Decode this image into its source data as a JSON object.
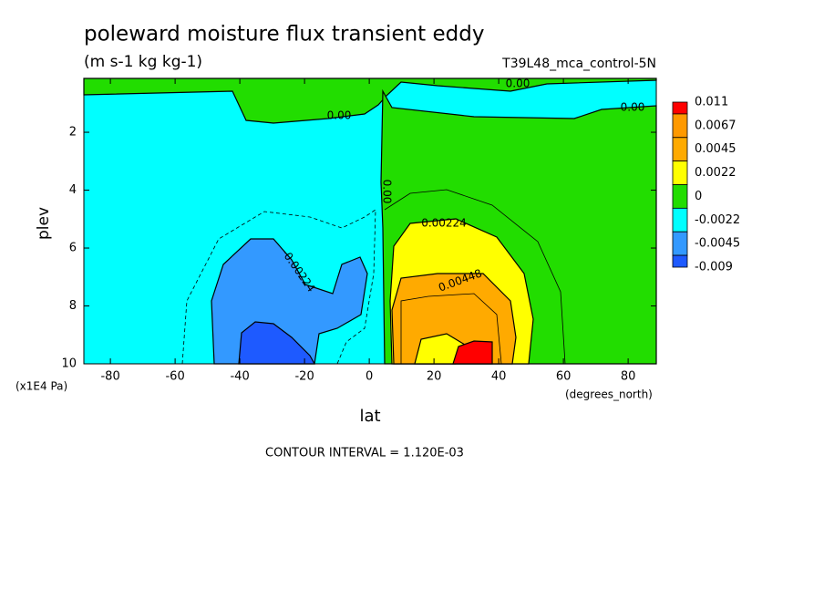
{
  "chart_data": {
    "type": "contour",
    "title": "poleward moisture flux transient eddy",
    "subtitle": "(m s-1 kg kg-1)",
    "run_label": "T39L48_mca_control-5N",
    "x_label": "lat",
    "x_unit": "(degrees_north)",
    "y_label": "plev",
    "y_unit": "(x1E4 Pa)",
    "footer": "CONTOUR INTERVAL = 1.120E-03",
    "xlim": [
      -88.2,
      88.7
    ],
    "xticks": [
      -80,
      -60,
      -40,
      -20,
      0,
      20,
      40,
      60,
      80
    ],
    "ylim": [
      0.14,
      10
    ],
    "yticks": [
      2,
      4,
      6,
      8,
      10
    ],
    "y_inverted": true,
    "levels": [
      0.011,
      0.0067,
      0.0045,
      0.0022,
      0,
      -0.0022,
      -0.0045,
      -0.009
    ],
    "colors": [
      "#ff0000",
      "#ff9900",
      "#ffaa00",
      "#ffff00",
      "#22dd00",
      "#00ffff",
      "#3399ff",
      "#1e5aff"
    ],
    "contour_labels": [
      "0.00",
      "0.00",
      "0.00",
      "0.00",
      "0.00224",
      "0.00448",
      "-0.00224"
    ]
  }
}
